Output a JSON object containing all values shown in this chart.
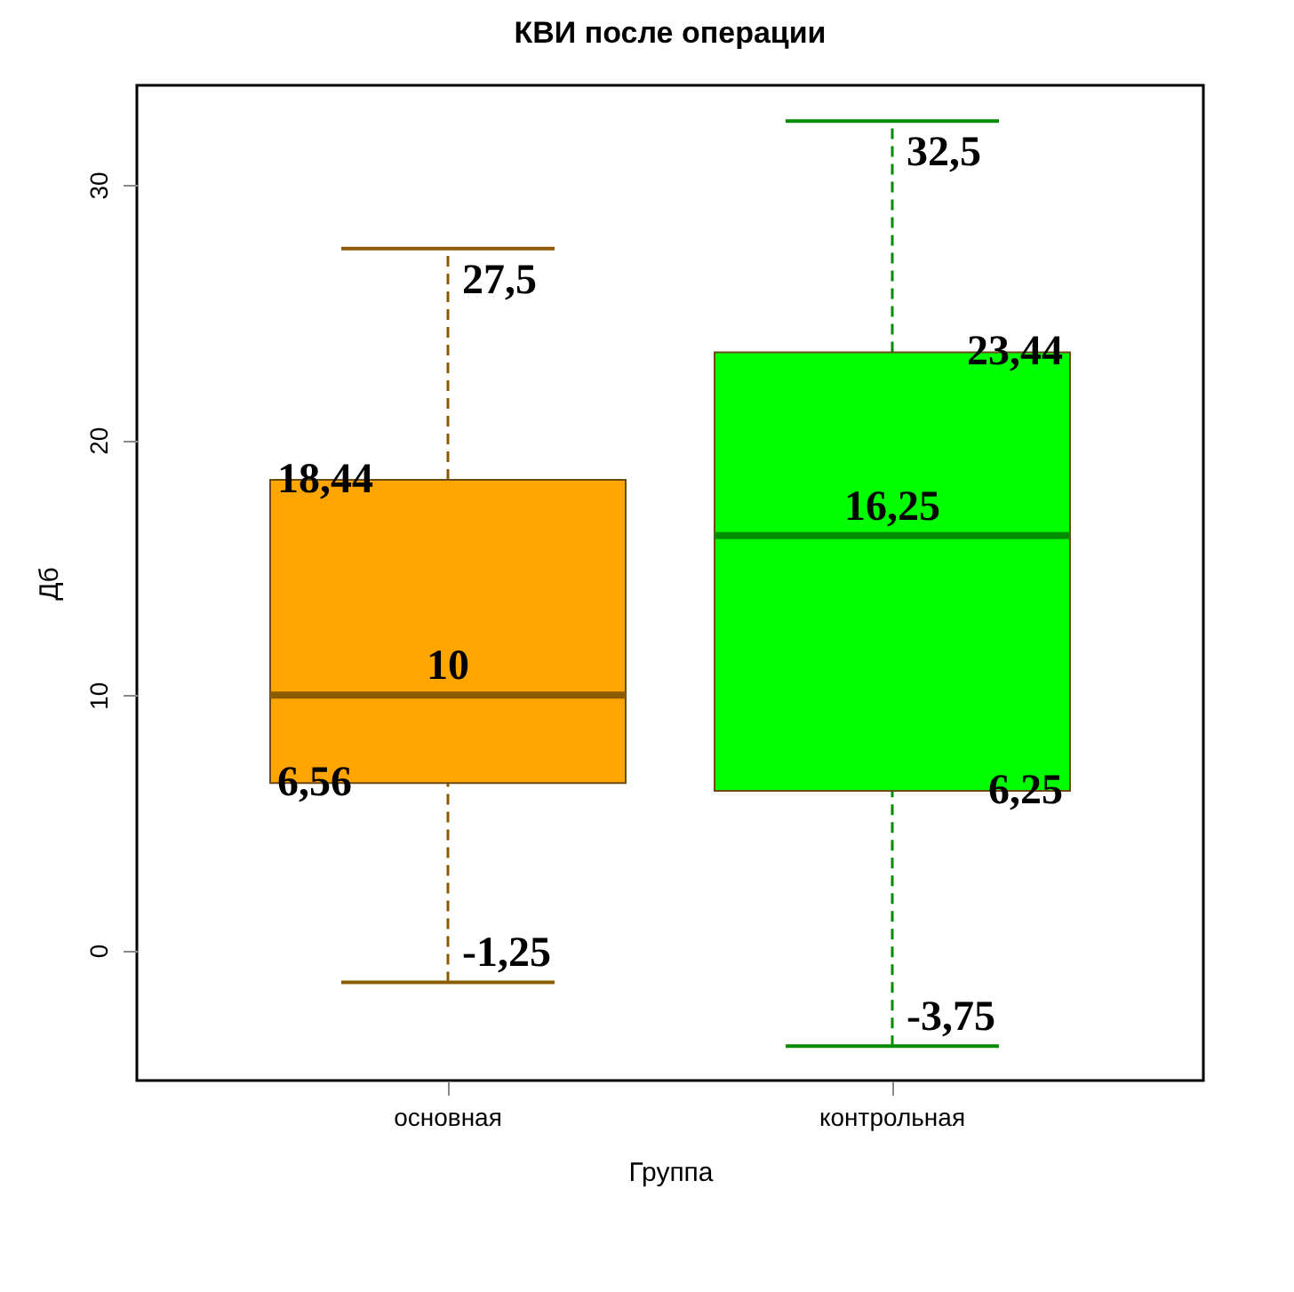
{
  "chart_data": {
    "type": "box",
    "title": "КВИ после операции",
    "xlabel": "Группа",
    "ylabel": "Дб",
    "categories": [
      "основная",
      "контрольная"
    ],
    "boxes": [
      {
        "low": -1.25,
        "q1": 6.56,
        "median": 10,
        "q3": 18.44,
        "high": 27.5
      },
      {
        "low": -3.75,
        "q1": 6.25,
        "median": 16.25,
        "q3": 23.44,
        "high": 32.5
      }
    ],
    "colors": [
      "#ffa500",
      "#00ff00"
    ],
    "ylim": [
      -5.1,
      33.9
    ],
    "yticks": [
      0,
      10,
      20,
      30
    ],
    "grid": false,
    "annotations": [
      {
        "text": "27,5",
        "x": "основная",
        "y": 27.5
      },
      {
        "text": "18,44",
        "x": "основная",
        "y": 18.44
      },
      {
        "text": "10",
        "x": "основная",
        "y": 10
      },
      {
        "text": "6,56",
        "x": "основная",
        "y": 6.56
      },
      {
        "text": "-1,25",
        "x": "основная",
        "y": -1.25
      },
      {
        "text": "32,5",
        "x": "контрольная",
        "y": 32.5
      },
      {
        "text": "23,44",
        "x": "контрольная",
        "y": 23.44
      },
      {
        "text": "16,25",
        "x": "контрольная",
        "y": 16.25
      },
      {
        "text": "6,25",
        "x": "контрольная",
        "y": 6.25
      },
      {
        "text": "-3,75",
        "x": "контрольная",
        "y": -3.75
      }
    ]
  }
}
